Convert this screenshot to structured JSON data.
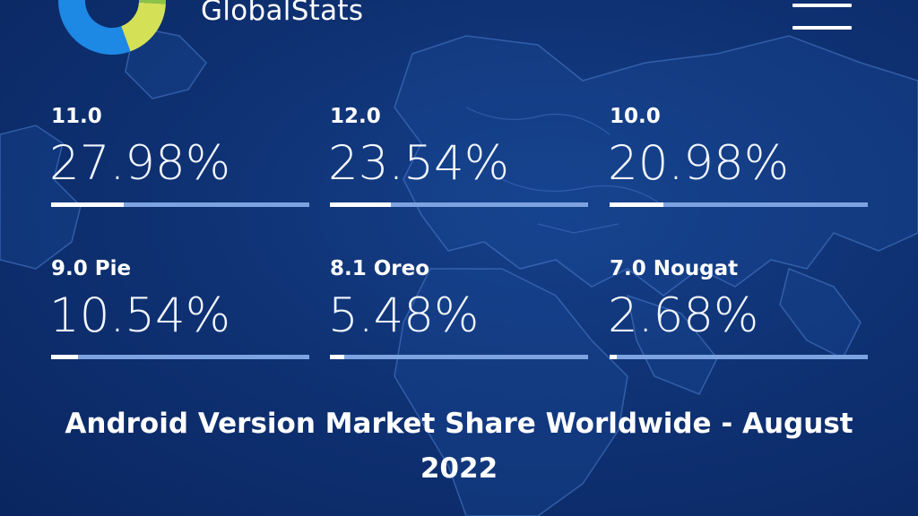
{
  "header": {
    "brand_name": "GlobalStats",
    "logo_icon": "donut-chart-logo-icon",
    "menu_icon": "hamburger-menu-icon"
  },
  "stats": [
    {
      "name": "11.0",
      "value": "27.98%",
      "share": 27.98
    },
    {
      "name": "12.0",
      "value": "23.54%",
      "share": 23.54
    },
    {
      "name": "10.0",
      "value": "20.98%",
      "share": 20.98
    },
    {
      "name": "9.0 Pie",
      "value": "10.54%",
      "share": 10.54
    },
    {
      "name": "8.1 Oreo",
      "value": "5.48%",
      "share": 5.48
    },
    {
      "name": "7.0 Nougat",
      "value": "2.68%",
      "share": 2.68
    }
  ],
  "title": {
    "line1": "Android Version Market Share Worldwide - August",
    "line2": "2022"
  },
  "colors": {
    "background": "#0f3274",
    "bar_track": "#7da3e0",
    "bar_fill": "#ffffff",
    "logo_blue": "#1e88e5",
    "logo_green": "#8bc34a",
    "logo_yellow": "#d4e157"
  }
}
